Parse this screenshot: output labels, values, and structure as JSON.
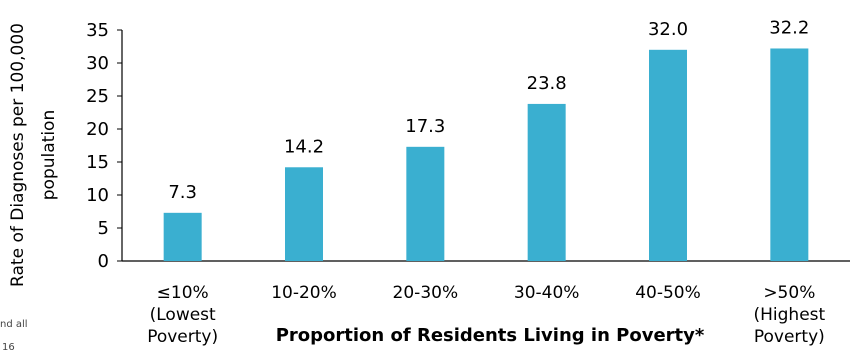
{
  "chart_data": {
    "type": "bar",
    "categories": [
      [
        "≤10%",
        "(Lowest",
        "Poverty)"
      ],
      [
        "10-20%"
      ],
      [
        "20-30%"
      ],
      [
        "30-40%"
      ],
      [
        "40-50%"
      ],
      [
        ">50%",
        "(Highest",
        "Poverty)"
      ]
    ],
    "values": [
      7.3,
      14.2,
      17.3,
      23.8,
      32.0,
      32.2
    ],
    "data_labels": [
      "7.3",
      "14.2",
      "17.3",
      "23.8",
      "32.0",
      "32.2"
    ],
    "xlabel": "Proportion of Residents Living in Poverty*",
    "ylabel": [
      "Rate of Diagnoses per 100,000",
      "population"
    ],
    "ylim": [
      0,
      35
    ],
    "yticks": [
      0,
      5,
      10,
      15,
      20,
      25,
      30,
      35
    ],
    "bar_color": "#3AAFD0",
    "axis_color": "#000000",
    "grid": false
  },
  "footnote_fragments": [
    "nd all",
    "16"
  ]
}
